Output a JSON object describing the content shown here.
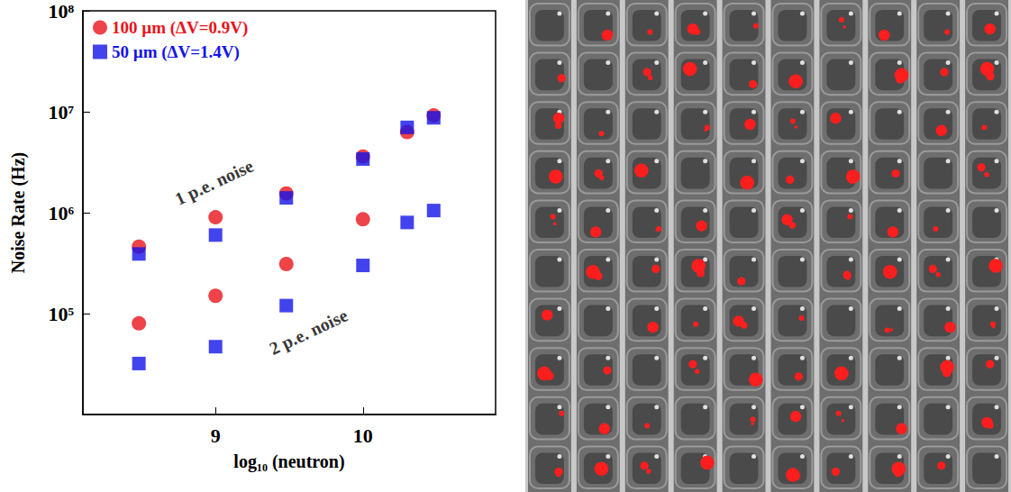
{
  "chart_data": {
    "type": "scatter",
    "xlabel": "log₁₀ (neutron)",
    "ylabel": "Noise Rate (Hz)",
    "x": [
      8.48,
      9,
      9.48,
      10,
      10.3,
      10.48
    ],
    "series": [
      {
        "name": "100 µm (ΔV=0.9V)",
        "color": "#e8141c",
        "marker": "circle",
        "values": [
          460000,
          900000,
          1550000,
          3600000,
          6300000,
          9200000
        ],
        "values_2pe": [
          80000,
          150000,
          310000,
          860000,
          null,
          null
        ]
      },
      {
        "name": "50 µm (ΔV=1.4V)",
        "color": "#1414e8",
        "marker": "square",
        "values": [
          390000,
          600000,
          1400000,
          3400000,
          7000000,
          8700000
        ],
        "values_2pe": [
          32000,
          47000,
          120000,
          300000,
          800000,
          1050000
        ]
      }
    ],
    "annotations": [
      {
        "text": "1 p.e. noise",
        "x": 8.99,
        "y": 2000000
      },
      {
        "text": "2 p.e. noise",
        "x": 9.63,
        "y": 66000
      }
    ],
    "xlim": [
      8.1,
      10.9
    ],
    "xticks": [
      9,
      10
    ],
    "ylim": [
      10000,
      100000000
    ],
    "yticks": [
      {
        "value": 100000,
        "label": "10⁵"
      },
      {
        "value": 1000000,
        "label": "10⁶"
      },
      {
        "value": 10000000,
        "label": "10⁷"
      },
      {
        "value": 100000000,
        "label": "10⁸"
      }
    ],
    "log": "y",
    "grid": false,
    "legend": "top-left"
  }
}
